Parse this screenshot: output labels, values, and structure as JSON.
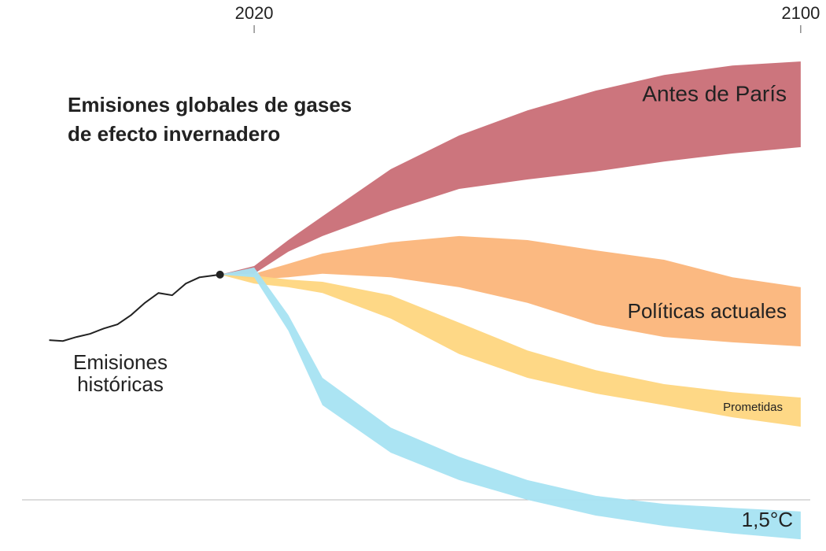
{
  "chart_data": {
    "type": "area",
    "title": [
      "Emisiones globales de gases",
      "de efecto invernadero"
    ],
    "xlim": [
      1982.8,
      2103.7
    ],
    "ylim": [
      -11.4,
      111.4
    ],
    "xticks": [
      2020,
      2100
    ],
    "series": [
      {
        "name": "Emisiones históricas",
        "color": "#222222",
        "x": [
          1990,
          1992,
          1994,
          1996,
          1998,
          2000,
          2002,
          2004,
          2006,
          2008,
          2010,
          2012,
          2014,
          2015
        ],
        "values": [
          35.6,
          35.4,
          36.3,
          37,
          38.2,
          39.1,
          41.2,
          43.9,
          46.1,
          45.6,
          48.2,
          49.6,
          50,
          50.2
        ]
      },
      {
        "name": "Antes de París",
        "color": "#c96e76",
        "x": [
          2015,
          2020,
          2025,
          2030,
          2040,
          2050,
          2060,
          2070,
          2080,
          2090,
          2100
        ],
        "high": [
          50.2,
          52.1,
          57.9,
          63.2,
          73.7,
          81.2,
          86.8,
          91.2,
          94.7,
          96.8,
          97.7
        ],
        "low": [
          50.2,
          50.4,
          55.3,
          58.8,
          64.4,
          69.3,
          71.4,
          73.2,
          75.4,
          77.2,
          78.6
        ]
      },
      {
        "name": "Políticas actuales",
        "color": "#fbb57a",
        "x": [
          2015,
          2020,
          2025,
          2030,
          2040,
          2050,
          2060,
          2070,
          2080,
          2090,
          2100
        ],
        "high": [
          50.2,
          50.4,
          52.6,
          54.9,
          57.4,
          58.8,
          57.9,
          55.6,
          53.5,
          49.6,
          47.4
        ],
        "low": [
          50.2,
          49.1,
          49.6,
          50.4,
          49.6,
          47.4,
          43.9,
          39.1,
          36.3,
          35.1,
          34.2
        ]
      },
      {
        "name": "Prometidas",
        "color": "#fed67f",
        "x": [
          2015,
          2020,
          2025,
          2030,
          2040,
          2050,
          2060,
          2070,
          2080,
          2090,
          2100
        ],
        "high": [
          50.2,
          50,
          49.1,
          48.6,
          45.6,
          39.5,
          33.3,
          28.9,
          25.8,
          24,
          22.8
        ],
        "low": [
          50.2,
          48.2,
          47.4,
          46.1,
          40.4,
          32.5,
          27.2,
          23.7,
          21.1,
          18.4,
          16.3
        ]
      },
      {
        "name": "1,5°C",
        "color": "#a7e3f2",
        "x": [
          2015,
          2020,
          2025,
          2030,
          2040,
          2050,
          2060,
          2070,
          2080,
          2090,
          2100
        ],
        "high": [
          50.2,
          51.8,
          41.2,
          27.2,
          16.1,
          9.6,
          4.4,
          0.9,
          -0.9,
          -1.8,
          -2.6
        ],
        "low": [
          50.2,
          49.6,
          37.7,
          21.1,
          10.5,
          4.4,
          0,
          -3.5,
          -5.8,
          -7.5,
          -8.8
        ]
      }
    ]
  }
}
